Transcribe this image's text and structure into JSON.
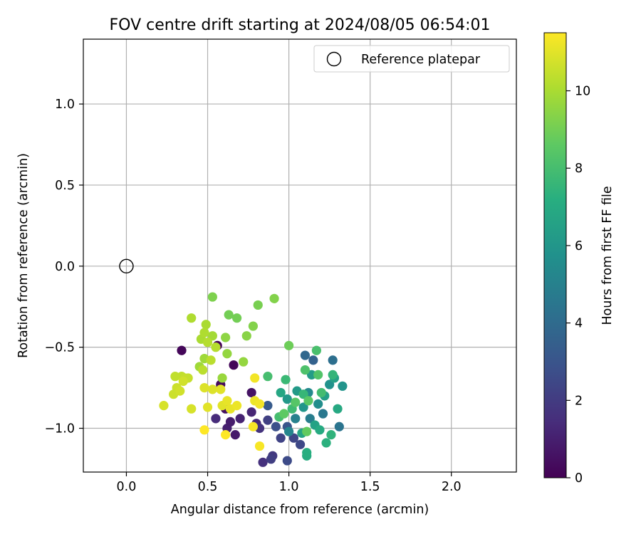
{
  "chart_data": {
    "type": "scatter",
    "title": "FOV centre drift starting at 2024/08/05 06:54:01",
    "xlabel": "Angular distance from reference (arcmin)",
    "ylabel": "Rotation from reference (arcmin)",
    "xlim": [
      -0.265,
      2.4
    ],
    "ylim": [
      -1.27,
      1.4
    ],
    "xticks": [
      0.0,
      0.5,
      1.0,
      1.5,
      2.0
    ],
    "xtick_labels": [
      "0.0",
      "0.5",
      "1.0",
      "1.5",
      "2.0"
    ],
    "yticks": [
      -1.0,
      -0.5,
      0.0,
      0.5,
      1.0
    ],
    "ytick_labels": [
      "−1.0",
      "−0.5",
      "0.0",
      "0.5",
      "1.0"
    ],
    "grid": true,
    "legend_position": "top-right",
    "legend": [
      {
        "label": "Reference platepar",
        "marker": "open-circle"
      }
    ],
    "reference_point": {
      "x": 0.0,
      "y": 0.0
    },
    "colorbar": {
      "label": "Hours from first FF file",
      "range": [
        0,
        11.5
      ],
      "ticks": [
        0,
        2,
        4,
        6,
        8,
        10
      ],
      "tick_labels": [
        "0",
        "2",
        "4",
        "6",
        "8",
        "10"
      ],
      "colormap": "viridis"
    },
    "series": [
      {
        "points": [
          {
            "x": 0.34,
            "y": -0.52,
            "h": 0.2
          },
          {
            "x": 0.56,
            "y": -0.49,
            "h": 0.1
          },
          {
            "x": 0.66,
            "y": -0.61,
            "h": 0.2
          },
          {
            "x": 0.58,
            "y": -0.73,
            "h": 0.3
          },
          {
            "x": 0.61,
            "y": -0.88,
            "h": 0.5
          },
          {
            "x": 0.77,
            "y": -0.78,
            "h": 0.6
          },
          {
            "x": 0.62,
            "y": -1.0,
            "h": 1.0
          },
          {
            "x": 0.67,
            "y": -1.04,
            "h": 0.8
          },
          {
            "x": 0.64,
            "y": -0.96,
            "h": 0.9
          },
          {
            "x": 0.7,
            "y": -0.94,
            "h": 1.1
          },
          {
            "x": 0.77,
            "y": -0.9,
            "h": 1.2
          },
          {
            "x": 0.8,
            "y": -0.97,
            "h": 1.3
          },
          {
            "x": 0.55,
            "y": -0.94,
            "h": 1.4
          },
          {
            "x": 0.84,
            "y": -1.21,
            "h": 1.6
          },
          {
            "x": 0.82,
            "y": -1.0,
            "h": 1.7
          },
          {
            "x": 0.9,
            "y": -1.17,
            "h": 1.9
          },
          {
            "x": 0.89,
            "y": -1.19,
            "h": 2.1
          },
          {
            "x": 0.87,
            "y": -0.95,
            "h": 2.2
          },
          {
            "x": 0.95,
            "y": -1.06,
            "h": 2.3
          },
          {
            "x": 0.99,
            "y": -1.2,
            "h": 2.6
          },
          {
            "x": 1.03,
            "y": -1.06,
            "h": 2.4
          },
          {
            "x": 1.07,
            "y": -1.1,
            "h": 2.5
          },
          {
            "x": 0.92,
            "y": -0.99,
            "h": 2.8
          },
          {
            "x": 0.99,
            "y": -0.99,
            "h": 3.0
          },
          {
            "x": 0.87,
            "y": -0.86,
            "h": 3.3
          },
          {
            "x": 1.1,
            "y": -0.55,
            "h": 3.8
          },
          {
            "x": 1.15,
            "y": -0.58,
            "h": 3.6
          },
          {
            "x": 1.27,
            "y": -0.58,
            "h": 4.2
          },
          {
            "x": 1.31,
            "y": -0.99,
            "h": 4.4
          },
          {
            "x": 1.21,
            "y": -0.91,
            "h": 4.6
          },
          {
            "x": 1.13,
            "y": -0.94,
            "h": 4.8
          },
          {
            "x": 1.04,
            "y": -0.94,
            "h": 5.0
          },
          {
            "x": 1.0,
            "y": -1.02,
            "h": 5.2
          },
          {
            "x": 1.12,
            "y": -0.78,
            "h": 5.4
          },
          {
            "x": 1.18,
            "y": -0.85,
            "h": 5.6
          },
          {
            "x": 1.25,
            "y": -0.73,
            "h": 5.8
          },
          {
            "x": 1.33,
            "y": -0.74,
            "h": 5.9
          },
          {
            "x": 1.09,
            "y": -0.87,
            "h": 6.0
          },
          {
            "x": 0.99,
            "y": -0.82,
            "h": 6.1
          },
          {
            "x": 1.05,
            "y": -0.77,
            "h": 6.2
          },
          {
            "x": 1.14,
            "y": -0.67,
            "h": 6.3
          },
          {
            "x": 1.22,
            "y": -0.8,
            "h": 6.4
          },
          {
            "x": 1.28,
            "y": -0.69,
            "h": 6.5
          },
          {
            "x": 1.16,
            "y": -0.98,
            "h": 6.6
          },
          {
            "x": 1.08,
            "y": -1.03,
            "h": 6.7
          },
          {
            "x": 0.95,
            "y": -0.78,
            "h": 6.8
          },
          {
            "x": 1.3,
            "y": -0.88,
            "h": 6.9
          },
          {
            "x": 1.19,
            "y": -1.01,
            "h": 7.0
          },
          {
            "x": 1.11,
            "y": -1.17,
            "h": 7.1
          },
          {
            "x": 1.11,
            "y": -1.15,
            "h": 7.2
          },
          {
            "x": 1.23,
            "y": -1.09,
            "h": 7.3
          },
          {
            "x": 1.26,
            "y": -1.04,
            "h": 7.4
          },
          {
            "x": 1.27,
            "y": -0.67,
            "h": 7.5
          },
          {
            "x": 1.09,
            "y": -0.79,
            "h": 7.6
          },
          {
            "x": 0.98,
            "y": -0.7,
            "h": 7.7
          },
          {
            "x": 1.02,
            "y": -0.88,
            "h": 7.8
          },
          {
            "x": 1.2,
            "y": -0.78,
            "h": 7.9
          },
          {
            "x": 0.87,
            "y": -0.68,
            "h": 8.0
          },
          {
            "x": 0.94,
            "y": -0.93,
            "h": 8.0
          },
          {
            "x": 1.17,
            "y": -0.52,
            "h": 8.1
          },
          {
            "x": 1.1,
            "y": -0.64,
            "h": 8.2
          },
          {
            "x": 1.18,
            "y": -0.67,
            "h": 8.3
          },
          {
            "x": 1.04,
            "y": -0.84,
            "h": 8.4
          },
          {
            "x": 1.12,
            "y": -0.83,
            "h": 8.5
          },
          {
            "x": 0.97,
            "y": -0.91,
            "h": 8.6
          },
          {
            "x": 1.11,
            "y": -1.02,
            "h": 8.7
          },
          {
            "x": 1.0,
            "y": -0.49,
            "h": 8.9
          },
          {
            "x": 0.63,
            "y": -0.3,
            "h": 9.0
          },
          {
            "x": 0.68,
            "y": -0.32,
            "h": 9.0
          },
          {
            "x": 0.53,
            "y": -0.19,
            "h": 9.2
          },
          {
            "x": 0.81,
            "y": -0.24,
            "h": 9.1
          },
          {
            "x": 0.91,
            "y": -0.2,
            "h": 9.3
          },
          {
            "x": 0.78,
            "y": -0.37,
            "h": 9.3
          },
          {
            "x": 0.74,
            "y": -0.43,
            "h": 9.4
          },
          {
            "x": 0.61,
            "y": -0.44,
            "h": 9.5
          },
          {
            "x": 0.62,
            "y": -0.54,
            "h": 9.6
          },
          {
            "x": 0.72,
            "y": -0.59,
            "h": 9.6
          },
          {
            "x": 0.59,
            "y": -0.69,
            "h": 9.7
          },
          {
            "x": 0.45,
            "y": -0.62,
            "h": 9.8
          },
          {
            "x": 0.48,
            "y": -0.57,
            "h": 9.8
          },
          {
            "x": 0.53,
            "y": -0.43,
            "h": 9.9
          },
          {
            "x": 0.46,
            "y": -0.45,
            "h": 10.0
          },
          {
            "x": 0.49,
            "y": -0.36,
            "h": 10.0
          },
          {
            "x": 0.4,
            "y": -0.32,
            "h": 10.1
          },
          {
            "x": 0.48,
            "y": -0.41,
            "h": 10.1
          },
          {
            "x": 0.5,
            "y": -0.47,
            "h": 10.2
          },
          {
            "x": 0.55,
            "y": -0.5,
            "h": 10.2
          },
          {
            "x": 0.52,
            "y": -0.58,
            "h": 10.3
          },
          {
            "x": 0.47,
            "y": -0.64,
            "h": 10.3
          },
          {
            "x": 0.34,
            "y": -0.68,
            "h": 10.4
          },
          {
            "x": 0.3,
            "y": -0.68,
            "h": 10.4
          },
          {
            "x": 0.36,
            "y": -0.69,
            "h": 10.5
          },
          {
            "x": 0.38,
            "y": -0.69,
            "h": 10.5
          },
          {
            "x": 0.31,
            "y": -0.75,
            "h": 10.6
          },
          {
            "x": 0.29,
            "y": -0.79,
            "h": 10.6
          },
          {
            "x": 0.33,
            "y": -0.77,
            "h": 10.7
          },
          {
            "x": 0.35,
            "y": -0.71,
            "h": 10.7
          },
          {
            "x": 0.23,
            "y": -0.86,
            "h": 10.8
          },
          {
            "x": 0.4,
            "y": -0.88,
            "h": 10.8
          },
          {
            "x": 0.48,
            "y": -0.75,
            "h": 10.9
          },
          {
            "x": 0.53,
            "y": -0.76,
            "h": 10.9
          },
          {
            "x": 0.58,
            "y": -0.76,
            "h": 11.0
          },
          {
            "x": 0.5,
            "y": -0.87,
            "h": 11.0
          },
          {
            "x": 0.59,
            "y": -0.86,
            "h": 11.0
          },
          {
            "x": 0.62,
            "y": -0.83,
            "h": 11.1
          },
          {
            "x": 0.64,
            "y": -0.88,
            "h": 11.1
          },
          {
            "x": 0.68,
            "y": -0.86,
            "h": 11.2
          },
          {
            "x": 0.79,
            "y": -0.83,
            "h": 11.2
          },
          {
            "x": 0.82,
            "y": -0.85,
            "h": 11.3
          },
          {
            "x": 0.79,
            "y": -0.69,
            "h": 11.3
          },
          {
            "x": 0.78,
            "y": -0.99,
            "h": 11.4
          },
          {
            "x": 0.82,
            "y": -1.11,
            "h": 11.4
          },
          {
            "x": 0.61,
            "y": -1.04,
            "h": 11.5
          },
          {
            "x": 0.48,
            "y": -1.01,
            "h": 11.5
          }
        ]
      }
    ]
  }
}
